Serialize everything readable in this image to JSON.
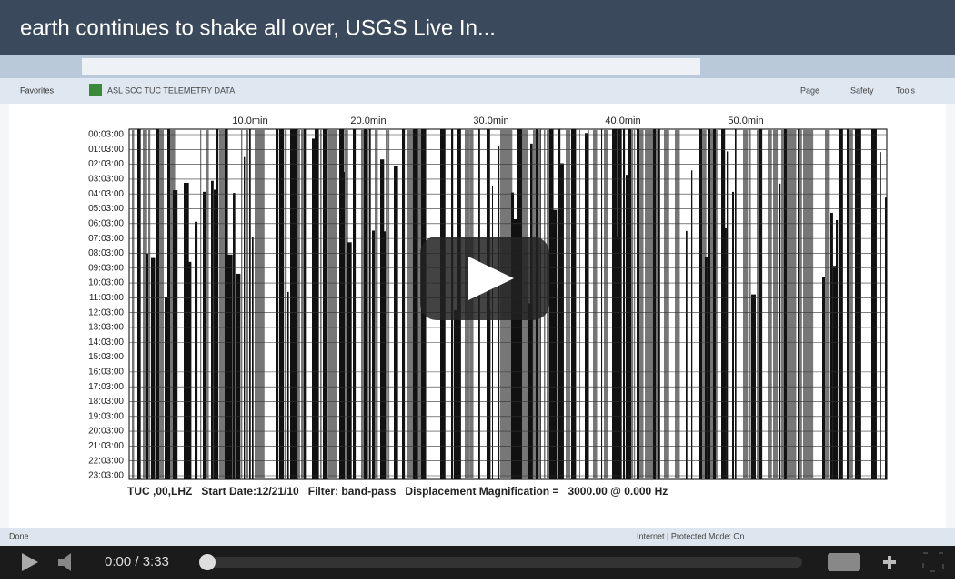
{
  "video": {
    "title": "earth continues to shake all over, USGS Live In...",
    "time": "0:00 / 3:33"
  },
  "browser": {
    "tab": "ASL SCC TUC TELEMETRY DATA",
    "favorites": "Favorites",
    "menu": [
      "Page",
      "Safety",
      "Tools"
    ],
    "status": "Done",
    "zone": "Internet | Protected Mode: On"
  },
  "plot": {
    "x_labels": [
      "10.0min",
      "20.0min",
      "30.0min",
      "40.0min",
      "50.0min"
    ],
    "y_labels": [
      "00:03:00",
      "01:03:00",
      "02:03:00",
      "03:03:00",
      "04:03:00",
      "05:03:00",
      "06:03:00",
      "07:03:00",
      "08:03:00",
      "09:03:00",
      "10:03:00",
      "11:03:00",
      "12:03:00",
      "13:03:00",
      "14:03:00",
      "15:03:00",
      "16:03:00",
      "17:03:00",
      "18:03:00",
      "19:03:00",
      "20:03:00",
      "21:03:00",
      "22:03:00",
      "23:03:00"
    ],
    "caption": "TUC ,00,LHZ   Start Date:12/21/10   Filter: band-pass   Displacement Magnification =   3000.00 @ 0.000 Hz"
  }
}
